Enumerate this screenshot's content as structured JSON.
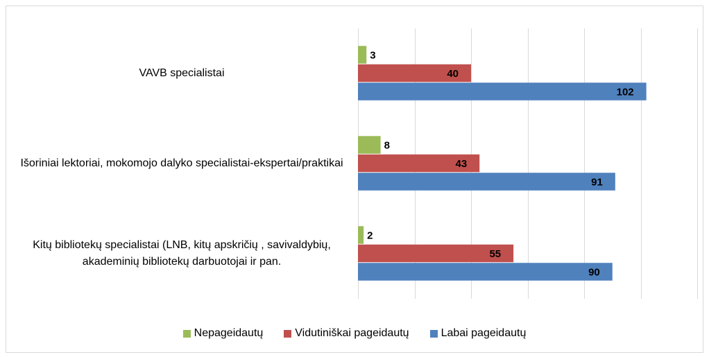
{
  "chart_data": {
    "type": "bar",
    "orientation": "horizontal",
    "categories": [
      "VAVB specialistai",
      "Išoriniai lektoriai, mokomojo dalyko specialistai-ekspertai/praktikai",
      "Kitų bibliotekų specialistai (LNB, kitų apskričių , savivaldybių, akademinių bibliotekų darbuotojai ir pan."
    ],
    "series": [
      {
        "name": "Nepageidautų",
        "color": "#9bbb59",
        "values": [
          3,
          8,
          2
        ]
      },
      {
        "name": "Vidutiniškai pageidautų",
        "color": "#c0504d",
        "values": [
          40,
          43,
          55
        ]
      },
      {
        "name": "Labai pageidautų",
        "color": "#4f81bd",
        "values": [
          102,
          91,
          90
        ]
      }
    ],
    "xlim": [
      0,
      120
    ],
    "xticks": [
      0,
      20,
      40,
      60,
      80,
      100,
      120
    ],
    "grid": true,
    "legend": "bottom"
  }
}
